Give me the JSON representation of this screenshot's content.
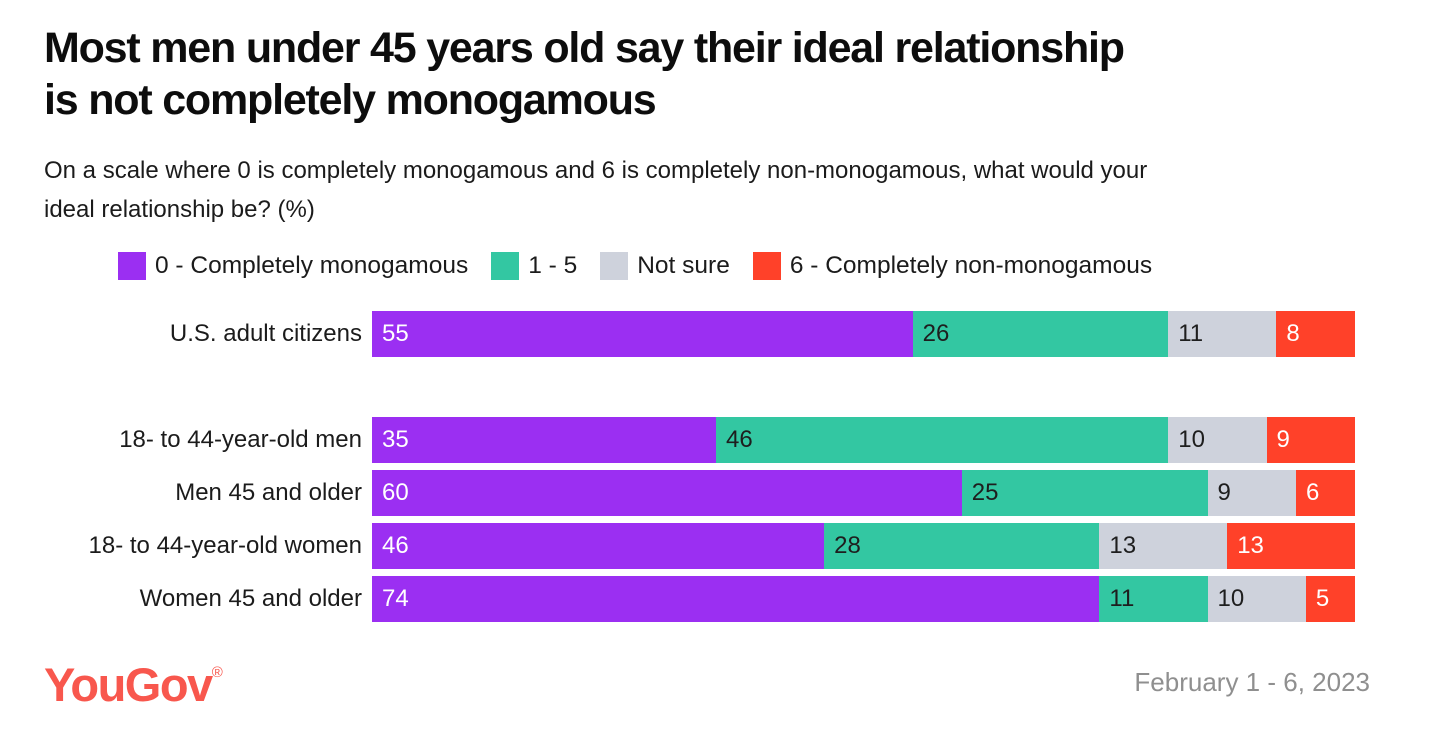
{
  "page": {
    "title_lines": [
      "Most men under 45 years old say their ideal relationship",
      "is not completely monogamous"
    ],
    "subtitle_lines": [
      "On a scale where 0 is completely monogamous and 6 is completely non-monogamous, what would your",
      "ideal relationship be? (%)"
    ],
    "footer": {
      "brand": "YouGov",
      "brand_registered": "®",
      "date_range": "February 1 - 6, 2023"
    }
  },
  "colors": {
    "purple": "#9B2FF2",
    "teal": "#33C7A2",
    "gray": "#CED2DC",
    "red": "#FF4129",
    "brand_coral": "#F8574D",
    "text_dark": "#1B1B1B",
    "date_gray": "#8F8F8F"
  },
  "chart_data": {
    "type": "bar",
    "orientation": "horizontal",
    "stacked": true,
    "unit": "%",
    "xlim": [
      0,
      100
    ],
    "legend_position": "top",
    "grid": false,
    "categories": [
      "U.S. adult citizens",
      "18- to 44-year-old men",
      "Men 45 and older",
      "18- to 44-year-old women",
      "Women 45 and older"
    ],
    "group_break_after_row": 0,
    "series": [
      {
        "name": "0 - Completely monogamous",
        "color": "#9B2FF2",
        "value_text_color": "#FFFFFF",
        "values": [
          55,
          35,
          60,
          46,
          74
        ]
      },
      {
        "name": "1 - 5",
        "color": "#33C7A2",
        "value_text_color": "#1E1E1E",
        "values": [
          26,
          46,
          25,
          28,
          11
        ]
      },
      {
        "name": "Not sure",
        "color": "#CED2DC",
        "value_text_color": "#1E1E1E",
        "values": [
          11,
          10,
          9,
          13,
          10
        ]
      },
      {
        "name": "6 - Completely non-monogamous",
        "color": "#FF4129",
        "value_text_color": "#FFFFFF",
        "values": [
          8,
          9,
          6,
          13,
          5
        ]
      }
    ]
  }
}
